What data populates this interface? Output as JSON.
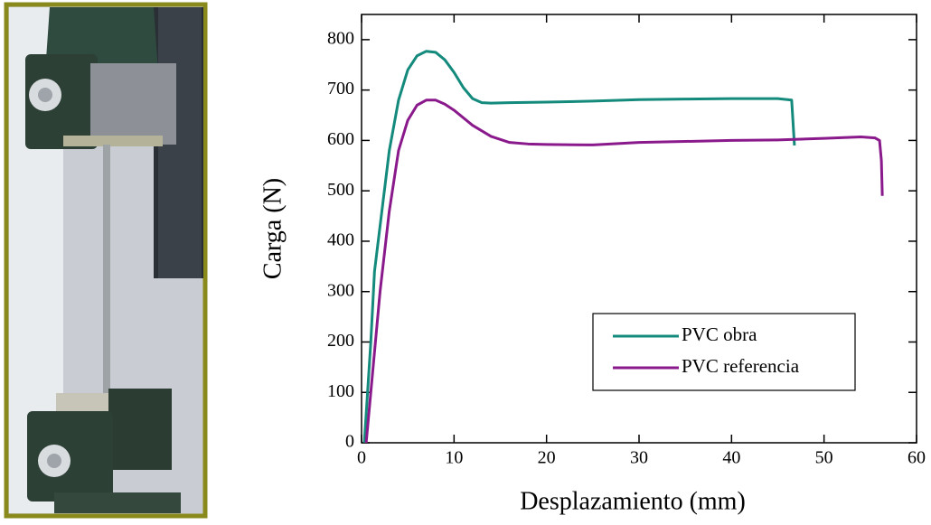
{
  "chart_data": {
    "type": "line",
    "x_label": "Desplazamiento (mm)",
    "y_label": "Carga (N)",
    "xlim": [
      0,
      60
    ],
    "xticks": [
      0,
      10,
      20,
      30,
      40,
      50,
      60
    ],
    "ylim": [
      0,
      850
    ],
    "yticks": [
      0,
      100,
      200,
      300,
      400,
      500,
      600,
      700,
      800
    ],
    "grid": false,
    "legend": "lower right",
    "series": [
      {
        "name": "PVC obra",
        "color": "#138a7c",
        "x": [
          0.3,
          1,
          1.4,
          2,
          3,
          4,
          5,
          6,
          7,
          8,
          9,
          10,
          11,
          12,
          13,
          14,
          16,
          20,
          25,
          30,
          35,
          40,
          45,
          46.5,
          46.7,
          46.8
        ],
        "values": [
          0,
          200,
          340,
          430,
          580,
          680,
          740,
          768,
          777,
          775,
          760,
          735,
          705,
          683,
          675,
          674,
          675,
          676,
          678,
          681,
          682,
          683,
          683,
          680,
          620,
          590
        ]
      },
      {
        "name": "PVC referencia",
        "color": "#8a1a8c",
        "x": [
          0.5,
          1,
          2,
          3,
          4,
          5,
          6,
          7,
          8,
          9,
          10,
          12,
          14,
          16,
          18,
          20,
          25,
          30,
          35,
          40,
          45,
          50,
          54,
          55.5,
          56,
          56.2,
          56.3
        ],
        "values": [
          0,
          100,
          300,
          460,
          580,
          640,
          670,
          680,
          680,
          672,
          660,
          630,
          608,
          596,
          593,
          592,
          591,
          596,
          598,
          600,
          601,
          604,
          607,
          605,
          600,
          560,
          490
        ]
      }
    ]
  }
}
